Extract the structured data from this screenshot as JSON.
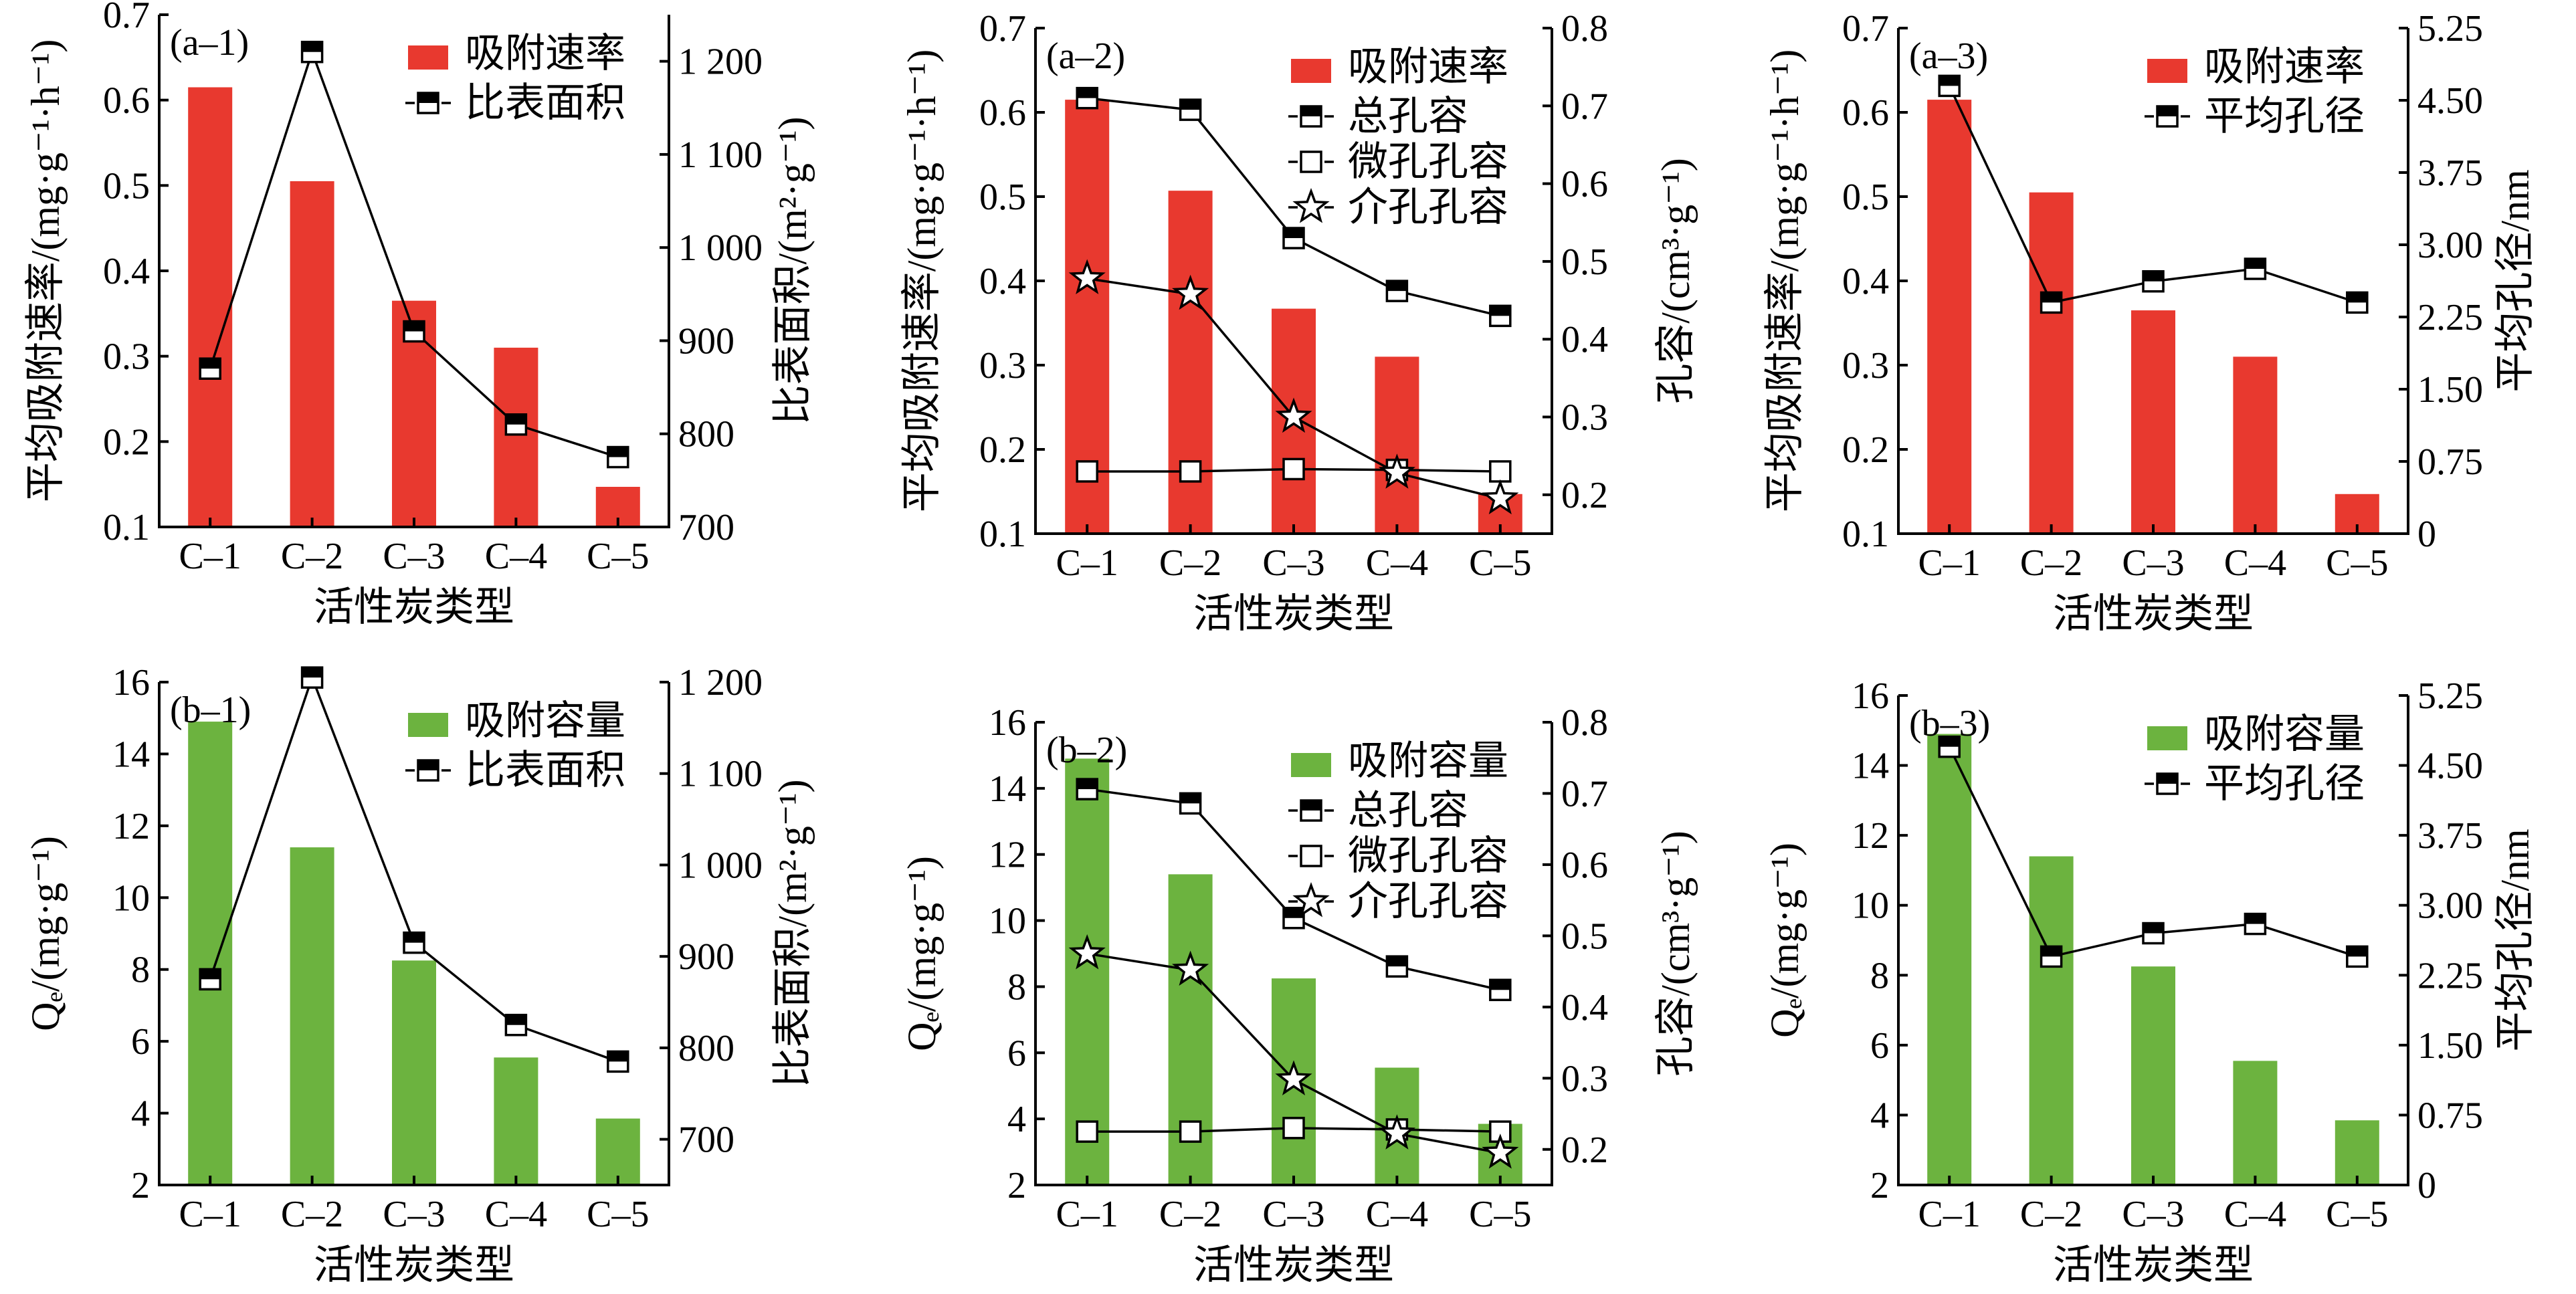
{
  "colors": {
    "rate_bar": "#e8392f",
    "capacity_bar": "#6cb33f",
    "line": "#000000"
  },
  "chart_data": [
    {
      "type": "bar",
      "panel_label": "(a–1)",
      "categories": [
        "C–1",
        "C–2",
        "C–3",
        "C–4",
        "C–5"
      ],
      "xlabel": "活性炭类型",
      "ylabel": "平均吸附速率/(mg·g⁻¹·h⁻¹)",
      "ylim": [
        0.1,
        0.7
      ],
      "yticks": [
        "0.1",
        "0.2",
        "0.3",
        "0.4",
        "0.5",
        "0.6",
        "0.7"
      ],
      "y2label": "比表面积/(m²·g⁻¹)",
      "y2lim": [
        700,
        1250
      ],
      "y2ticks": [
        "700",
        "800",
        "900",
        "1 000",
        "1 100",
        "1 200"
      ],
      "bar_color": "#e8392f",
      "bars": {
        "name": "吸附速率",
        "values": [
          0.615,
          0.505,
          0.365,
          0.31,
          0.147
        ]
      },
      "lines": [
        {
          "name": "比表面积",
          "marker": "half-square",
          "values": [
            870,
            1210,
            910,
            810,
            775
          ]
        }
      ]
    },
    {
      "type": "bar",
      "panel_label": "(a–2)",
      "categories": [
        "C–1",
        "C–2",
        "C–3",
        "C–4",
        "C–5"
      ],
      "xlabel": "活性炭类型",
      "ylabel": "平均吸附速率/(mg·g⁻¹·h⁻¹)",
      "ylim": [
        0.1,
        0.7
      ],
      "yticks": [
        "0.1",
        "0.2",
        "0.3",
        "0.4",
        "0.5",
        "0.6",
        "0.7"
      ],
      "y2label": "孔容/(cm³·g⁻¹)",
      "y2lim": [
        0.15,
        0.8
      ],
      "y2ticks": [
        "0.2",
        "0.3",
        "0.4",
        "0.5",
        "0.6",
        "0.7",
        "0.8"
      ],
      "bar_color": "#e8392f",
      "bars": {
        "name": "吸附速率",
        "values": [
          0.615,
          0.507,
          0.367,
          0.31,
          0.147
        ]
      },
      "lines": [
        {
          "name": "总孔容",
          "marker": "half-square",
          "values": [
            0.71,
            0.695,
            0.53,
            0.462,
            0.43
          ]
        },
        {
          "name": "微孔孔容",
          "marker": "open-square",
          "values": [
            0.23,
            0.23,
            0.233,
            0.232,
            0.23
          ]
        },
        {
          "name": "介孔孔容",
          "marker": "star",
          "values": [
            0.478,
            0.458,
            0.3,
            0.228,
            0.195
          ]
        }
      ]
    },
    {
      "type": "bar",
      "panel_label": "(a–3)",
      "categories": [
        "C–1",
        "C–2",
        "C–3",
        "C–4",
        "C–5"
      ],
      "xlabel": "活性炭类型",
      "ylabel": "平均吸附速率/(mg·g⁻¹·h⁻¹)",
      "ylim": [
        0.1,
        0.7
      ],
      "yticks": [
        "0.1",
        "0.2",
        "0.3",
        "0.4",
        "0.5",
        "0.6",
        "0.7"
      ],
      "y2label": "平均孔径/nm",
      "y2lim": [
        0,
        5.25
      ],
      "y2ticks": [
        "0",
        "0.75",
        "1.50",
        "2.25",
        "3.00",
        "3.75",
        "4.50",
        "5.25"
      ],
      "bar_color": "#e8392f",
      "bars": {
        "name": "吸附速率",
        "values": [
          0.615,
          0.505,
          0.365,
          0.31,
          0.147
        ]
      },
      "lines": [
        {
          "name": "平均孔径",
          "marker": "half-square",
          "values": [
            4.65,
            2.4,
            2.62,
            2.75,
            2.4
          ]
        }
      ]
    },
    {
      "type": "bar",
      "panel_label": "(b–1)",
      "categories": [
        "C–1",
        "C–2",
        "C–3",
        "C–4",
        "C–5"
      ],
      "xlabel": "活性炭类型",
      "ylabel": "Qₑ/(mg·g⁻¹)",
      "ylim": [
        2,
        16
      ],
      "yticks": [
        "2",
        "4",
        "6",
        "8",
        "10",
        "12",
        "14",
        "16"
      ],
      "y2label": "比表面积/(m²·g⁻¹)",
      "y2lim": [
        650,
        1200
      ],
      "y2ticks": [
        "700",
        "800",
        "900",
        "1 000",
        "1 100",
        "1 200"
      ],
      "bar_color": "#6cb33f",
      "bars": {
        "name": "吸附容量",
        "values": [
          14.9,
          11.4,
          8.25,
          5.55,
          3.85
        ]
      },
      "lines": [
        {
          "name": "比表面积",
          "marker": "half-square",
          "values": [
            875,
            1205,
            915,
            825,
            785
          ]
        }
      ]
    },
    {
      "type": "bar",
      "panel_label": "(b–2)",
      "categories": [
        "C–1",
        "C–2",
        "C–3",
        "C–4",
        "C–5"
      ],
      "xlabel": "活性炭类型",
      "ylabel": "Qₑ/(mg·g⁻¹)",
      "ylim": [
        2,
        16
      ],
      "yticks": [
        "2",
        "4",
        "6",
        "8",
        "10",
        "12",
        "14",
        "16"
      ],
      "y2label": "孔容/(cm³·g⁻¹)",
      "y2lim": [
        0.15,
        0.8
      ],
      "y2ticks": [
        "0.2",
        "0.3",
        "0.4",
        "0.5",
        "0.6",
        "0.7",
        "0.8"
      ],
      "bar_color": "#6cb33f",
      "bars": {
        "name": "吸附容量",
        "values": [
          14.9,
          11.4,
          8.25,
          5.55,
          3.85
        ]
      },
      "lines": [
        {
          "name": "总孔容",
          "marker": "half-square",
          "values": [
            0.706,
            0.686,
            0.525,
            0.457,
            0.424
          ]
        },
        {
          "name": "微孔孔容",
          "marker": "open-square",
          "values": [
            0.225,
            0.225,
            0.23,
            0.228,
            0.225
          ]
        },
        {
          "name": "介孔孔容",
          "marker": "star",
          "values": [
            0.475,
            0.452,
            0.298,
            0.222,
            0.195
          ]
        }
      ]
    },
    {
      "type": "bar",
      "panel_label": "(b–3)",
      "categories": [
        "C–1",
        "C–2",
        "C–3",
        "C–4",
        "C–5"
      ],
      "xlabel": "活性炭类型",
      "ylabel": "Qₑ/(mg·g⁻¹)",
      "ylim": [
        2,
        16
      ],
      "yticks": [
        "2",
        "4",
        "6",
        "8",
        "10",
        "12",
        "14",
        "16"
      ],
      "y2label": "平均孔径/nm",
      "y2lim": [
        0,
        5.25
      ],
      "y2ticks": [
        "0",
        "0.75",
        "1.50",
        "2.25",
        "3.00",
        "3.75",
        "4.50",
        "5.25"
      ],
      "bar_color": "#6cb33f",
      "bars": {
        "name": "吸附容量",
        "values": [
          14.9,
          11.4,
          8.25,
          5.55,
          3.85
        ]
      },
      "lines": [
        {
          "name": "平均孔径",
          "marker": "half-square",
          "values": [
            4.7,
            2.45,
            2.7,
            2.8,
            2.45
          ]
        }
      ]
    }
  ]
}
